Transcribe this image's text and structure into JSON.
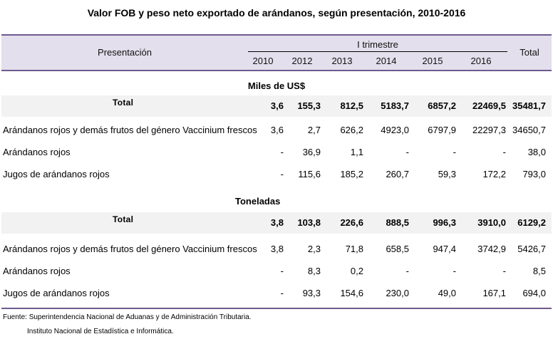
{
  "title": "Valor FOB y peso neto exportado de arándanos, según presentación, 2010-2016",
  "header": {
    "presentacion": "Presentación",
    "group_label": "I trimestre",
    "years": [
      "2010",
      "2012",
      "2013",
      "2014",
      "2015",
      "2016"
    ],
    "total": "Total"
  },
  "sections": [
    {
      "label": "Miles de US$",
      "rows": [
        {
          "label": "Total",
          "values": [
            "3,6",
            "155,3",
            "812,5",
            "5183,7",
            "6857,2",
            "22469,5",
            "35481,7"
          ]
        },
        {
          "label": "Arándanos rojos y demás frutos del género Vaccinium frescos",
          "values": [
            "3,6",
            "2,7",
            "626,2",
            "4923,0",
            "6797,9",
            "22297,3",
            "34650,7"
          ]
        },
        {
          "label": "Arándanos rojos",
          "values": [
            "-",
            "36,9",
            "1,1",
            "-",
            "-",
            "-",
            "38,0"
          ]
        },
        {
          "label": "Jugos de arándanos rojos",
          "values": [
            "-",
            "115,6",
            "185,2",
            "260,7",
            "59,3",
            "172,2",
            "793,0"
          ]
        }
      ]
    },
    {
      "label": "Toneladas",
      "rows": [
        {
          "label": "Total",
          "values": [
            "3,8",
            "103,8",
            "226,6",
            "888,5",
            "996,3",
            "3910,0",
            "6129,2"
          ]
        },
        {
          "label": "Arándanos rojos y demás frutos del género Vaccinium frescos",
          "values": [
            "3,8",
            "2,3",
            "71,8",
            "658,5",
            "947,4",
            "3742,9",
            "5426,7"
          ]
        },
        {
          "label": "Arándanos rojos",
          "values": [
            "-",
            "8,3",
            "0,2",
            "-",
            "-",
            "-",
            "8,5"
          ]
        },
        {
          "label": "Jugos de arándanos rojos",
          "values": [
            "-",
            "93,3",
            "154,6",
            "230,0",
            "49,0",
            "167,1",
            "694,0"
          ]
        }
      ]
    }
  ],
  "notes": {
    "source": "Fuente: Superintendencia Nacional de Aduanas y de Administración Tributaria.",
    "elaboration": "Instituto Nacional de Estadística e Informática."
  },
  "colors": {
    "header_bg": "#e3dfec",
    "rule": "#6e5a8e",
    "shaded_row": "#f2f2f2"
  }
}
